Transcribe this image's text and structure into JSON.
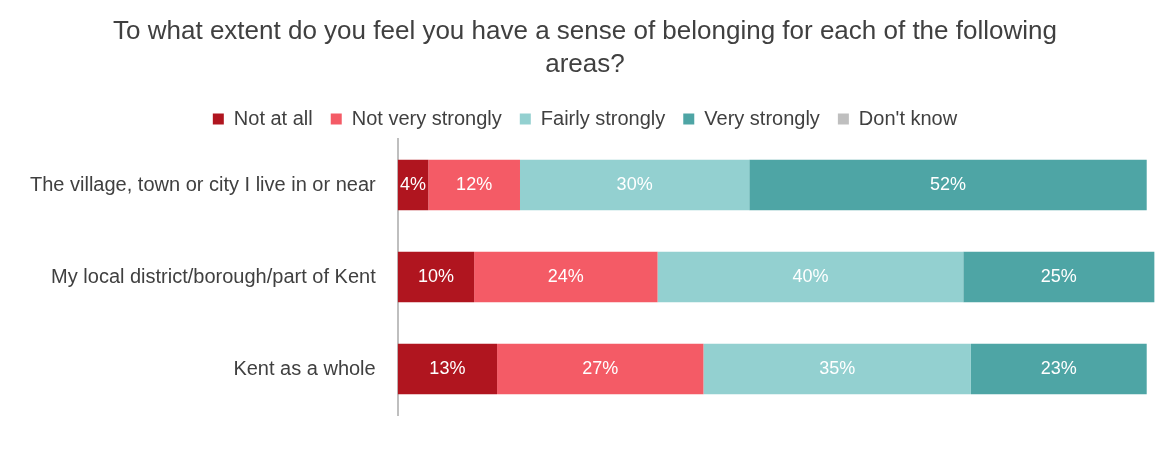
{
  "chart_data": {
    "type": "bar",
    "orientation": "horizontal",
    "stacked": true,
    "title": "To what extent do you feel you have a sense of belonging for each of the following areas?",
    "categories": [
      "The village, town or city I live in or near",
      "My local district/borough/part of Kent",
      "Kent as a whole"
    ],
    "series": [
      {
        "name": "Not at all",
        "color": "#b0151f",
        "values": [
          4,
          10,
          13
        ],
        "value_labels": [
          "4%",
          "10%",
          "13%"
        ]
      },
      {
        "name": "Not very strongly",
        "color": "#f45b66",
        "values": [
          12,
          24,
          27
        ],
        "value_labels": [
          "12%",
          "24%",
          "27%"
        ]
      },
      {
        "name": "Fairly strongly",
        "color": "#93d0d0",
        "values": [
          30,
          40,
          35
        ],
        "value_labels": [
          "30%",
          "40%",
          "35%"
        ]
      },
      {
        "name": "Very strongly",
        "color": "#4ea5a5",
        "values": [
          52,
          25,
          23
        ],
        "value_labels": [
          "52%",
          "25%",
          "23%"
        ]
      },
      {
        "name": "Don't know",
        "color": "#bfbfbf",
        "values": [
          null,
          null,
          null
        ]
      }
    ],
    "legend": "top",
    "grid": false
  }
}
